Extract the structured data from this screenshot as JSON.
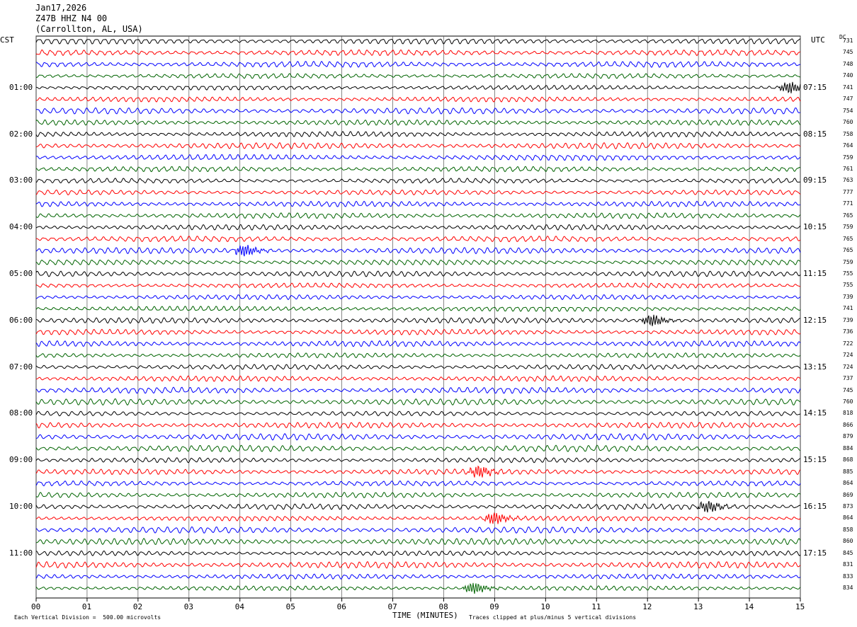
{
  "header": {
    "date": "Jan17,2026",
    "station": "Z47B HHZ N4 00",
    "location": "(Carrollton, AL, USA)"
  },
  "left_corner_label": "CST",
  "right_corner_label": "UTC",
  "dc_label": "DC",
  "chart_data": {
    "type": "line",
    "title": "Jan17,2026 Z47B HHZ N4 00 (Carrollton, AL, USA)",
    "xlabel": "TIME (MINUTES)",
    "x_ticks": [
      "00",
      "01",
      "02",
      "03",
      "04",
      "05",
      "06",
      "07",
      "08",
      "09",
      "10",
      "11",
      "12",
      "13",
      "14",
      "15"
    ],
    "xlim": [
      0,
      15
    ],
    "grid": true,
    "trace_colors": [
      "#000000",
      "#ff0000",
      "#0000ff",
      "#006400"
    ],
    "left_hour_labels": [
      "01:00",
      "02:00",
      "03:00",
      "04:00",
      "05:00",
      "06:00",
      "07:00",
      "08:00",
      "09:00",
      "10:00",
      "11:00"
    ],
    "right_hour_labels": [
      "07:15",
      "08:15",
      "09:15",
      "10:15",
      "11:15",
      "12:15",
      "13:15",
      "14:15",
      "15:15",
      "16:15",
      "17:15"
    ],
    "hour_label_first_row": 4,
    "traces_per_hour": 4,
    "dc_offsets": [
      "731",
      "745",
      "748",
      "740",
      "741",
      "747",
      "754",
      "760",
      "758",
      "764",
      "759",
      "761",
      "763",
      "777",
      "771",
      "765",
      "759",
      "765",
      "765",
      "759",
      "755",
      "755",
      "739",
      "741",
      "739",
      "736",
      "722",
      "724",
      "724",
      "737",
      "745",
      "760",
      "818",
      "866",
      "879",
      "884",
      "868",
      "885",
      "864",
      "869",
      "873",
      "864",
      "858",
      "860",
      "845",
      "831",
      "833",
      "834"
    ],
    "events": [
      {
        "row": 4,
        "minute": 14.8,
        "label": "burst"
      },
      {
        "row": 18,
        "minute": 4.1,
        "label": "burst"
      },
      {
        "row": 24,
        "minute": 12.1,
        "label": "burst"
      },
      {
        "row": 37,
        "minute": 8.7,
        "label": "burst"
      },
      {
        "row": 40,
        "minute": 13.2,
        "label": "burst"
      },
      {
        "row": 41,
        "minute": 9.0,
        "label": "burst"
      },
      {
        "row": 47,
        "minute": 8.6,
        "label": "burst"
      }
    ]
  },
  "footer": {
    "scale_note": "Each Vertical Division =  500.00 microvolts",
    "clip_note": "Traces clipped at plus/minus 5 vertical divisions"
  }
}
